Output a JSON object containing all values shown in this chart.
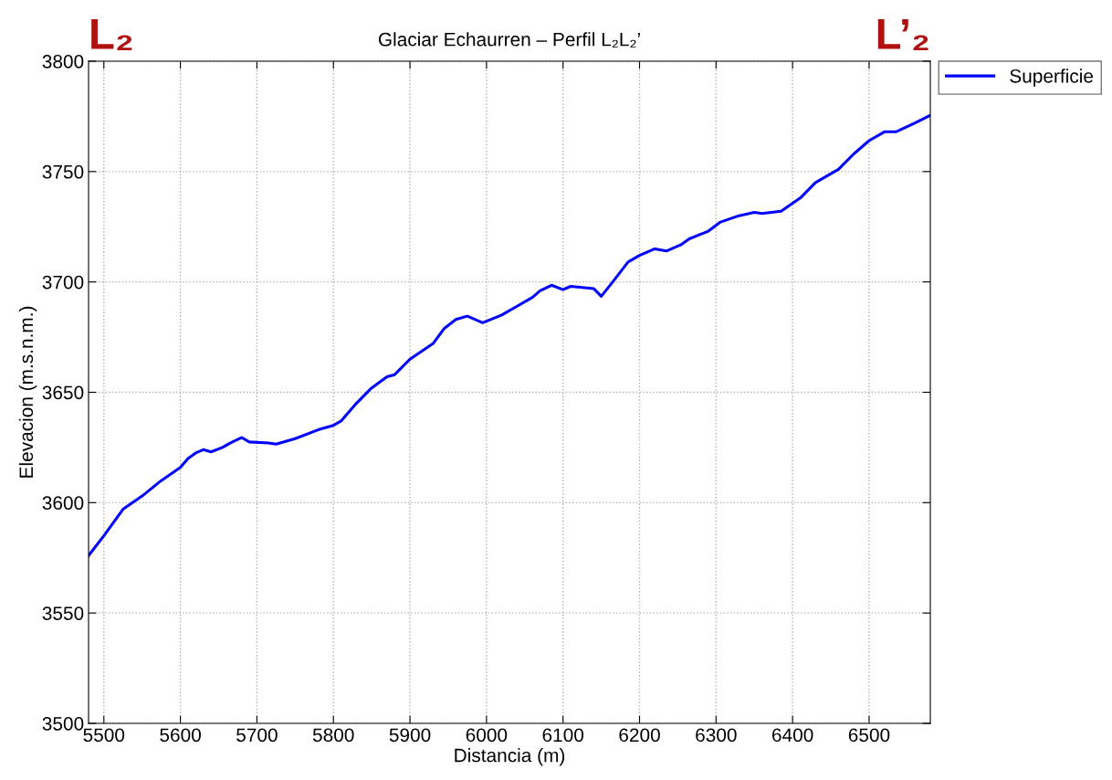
{
  "chart_data": {
    "type": "line",
    "title": "Glaciar Echaurren – Perfil L₂L₂’",
    "xlabel": "Distancia (m)",
    "ylabel": "Elevacion (m.s.n.m.)",
    "annotations": [
      "L₂",
      "L’₂"
    ],
    "xlim": [
      5480,
      6580
    ],
    "xticks": [
      5500,
      5600,
      5700,
      5800,
      5900,
      6000,
      6100,
      6200,
      6300,
      6400,
      6500
    ],
    "ylim": [
      3500,
      3800
    ],
    "yticks": [
      3500,
      3550,
      3600,
      3650,
      3700,
      3750,
      3800
    ],
    "grid": true,
    "legend": "top right",
    "line_style": "solid",
    "series": [
      {
        "name": "Superficie",
        "color": "#0000ff",
        "x": [
          5480,
          5500,
          5525,
          5550,
          5575,
          5600,
          5610,
          5620,
          5630,
          5640,
          5655,
          5665,
          5680,
          5690,
          5715,
          5725,
          5750,
          5780,
          5800,
          5810,
          5830,
          5850,
          5870,
          5880,
          5900,
          5930,
          5945,
          5960,
          5975,
          5995,
          6020,
          6040,
          6060,
          6070,
          6085,
          6100,
          6110,
          6140,
          6150,
          6165,
          6185,
          6200,
          6220,
          6235,
          6255,
          6265,
          6290,
          6305,
          6330,
          6350,
          6360,
          6385,
          6410,
          6430,
          6460,
          6480,
          6500,
          6520,
          6535,
          6560,
          6580
        ],
        "values": [
          3576,
          3585,
          3597,
          3603,
          3610,
          3616,
          3620,
          3622.5,
          3624,
          3623,
          3625,
          3627,
          3629.5,
          3627.5,
          3627,
          3626.5,
          3629,
          3633,
          3635,
          3637,
          3645,
          3652,
          3657,
          3658,
          3665,
          3672,
          3679,
          3683,
          3684.5,
          3681.5,
          3685,
          3689,
          3693,
          3696,
          3698.5,
          3696.5,
          3698,
          3697,
          3693.5,
          3700,
          3709,
          3712,
          3715,
          3714,
          3717,
          3719.5,
          3723,
          3727,
          3730,
          3731.5,
          3731,
          3732,
          3738,
          3745,
          3751,
          3758,
          3764,
          3768,
          3768,
          3772,
          3775.5
        ]
      }
    ]
  }
}
